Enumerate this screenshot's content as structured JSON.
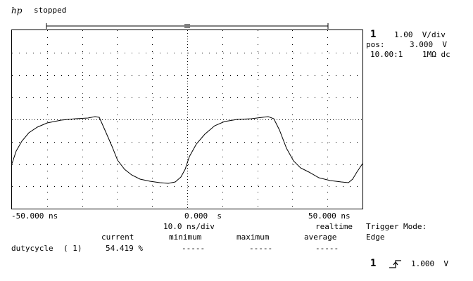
{
  "header": {
    "logo": "hp",
    "status": "stopped"
  },
  "channel": {
    "number": "1",
    "scale": "1.00  V/div",
    "pos_label": "pos:",
    "pos_value": "3.000  V",
    "probe": "10.00:1",
    "coupling": "1MΩ dc"
  },
  "timebase": {
    "left": "-50.000 ns",
    "center": "0.000  s",
    "right": "50.000 ns",
    "per_div": "10.0 ns/div",
    "mode": "realtime"
  },
  "trigger": {
    "label": "Trigger Mode:",
    "mode": "Edge",
    "channel": "1",
    "level": "1.000  V",
    "slope_icon": "rising-edge-icon"
  },
  "measurements": {
    "headers": [
      "current",
      "minimum",
      "maximum",
      "average"
    ],
    "rows": [
      {
        "name": "dutycycle",
        "channel": "( 1)",
        "current": "54.419 %",
        "minimum": "-----",
        "maximum": "-----",
        "average": "-----"
      }
    ]
  },
  "colors": {
    "trace": "#000000",
    "grid": "#000000",
    "background": "#ffffff"
  }
}
